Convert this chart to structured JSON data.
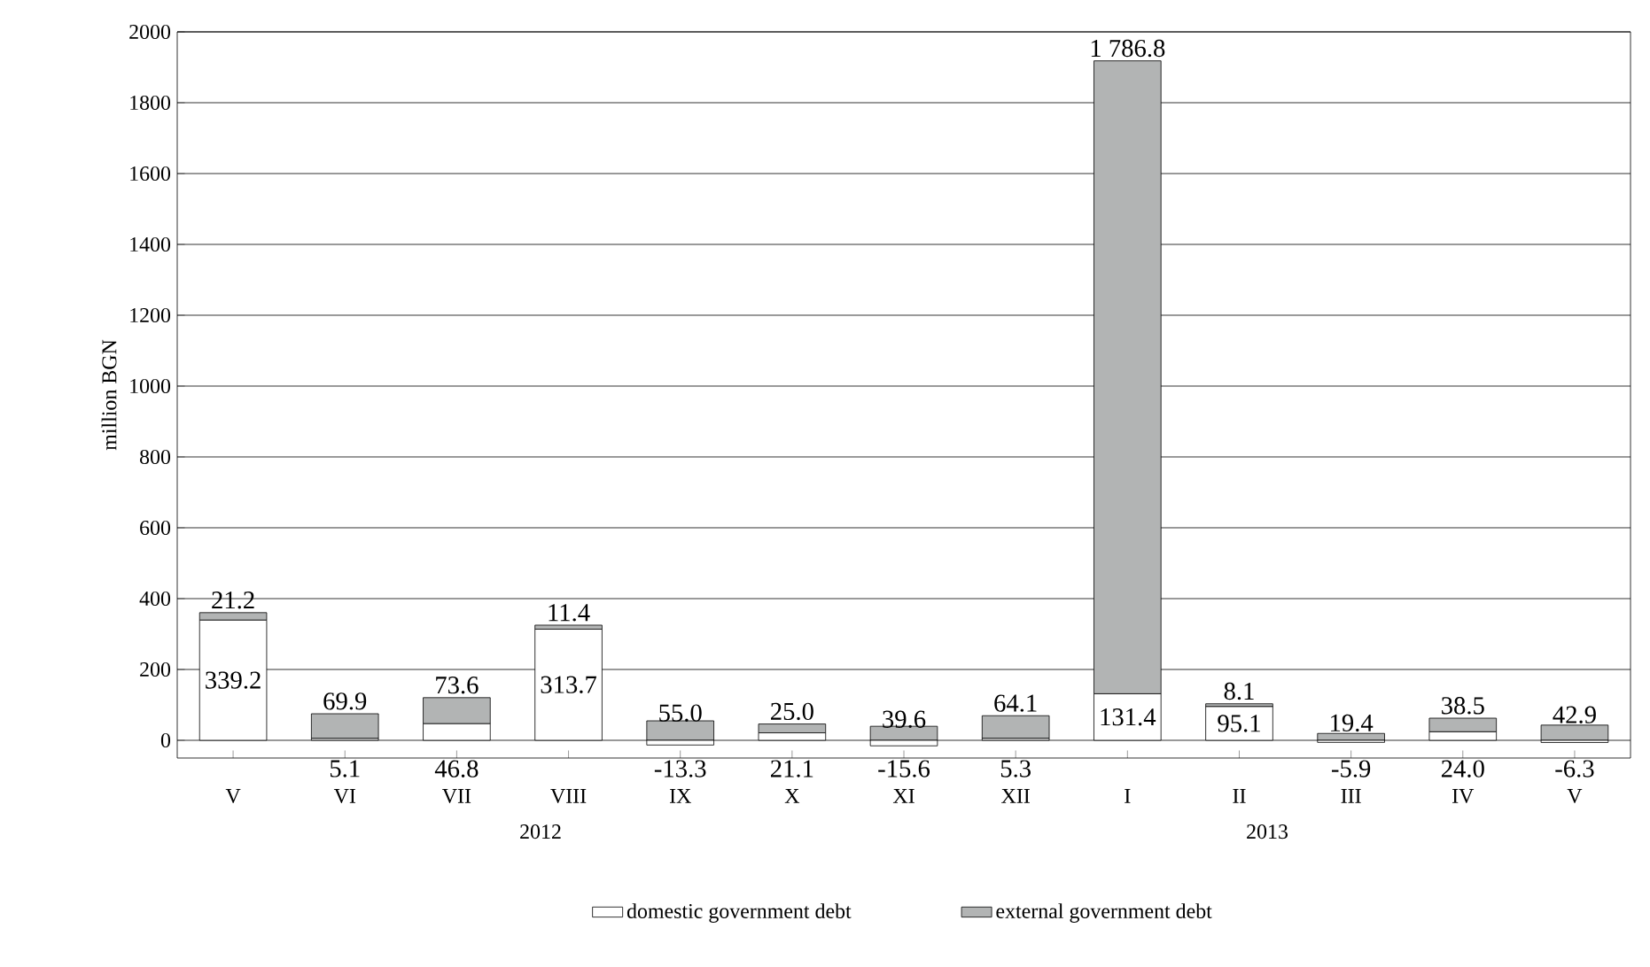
{
  "chart_data": {
    "type": "bar",
    "stacked": true,
    "ylabel": "million BGN",
    "categories": [
      "V",
      "VI",
      "VII",
      "VIII",
      "IX",
      "X",
      "XI",
      "XII",
      "I",
      "II",
      "III",
      "IV",
      "V"
    ],
    "series": [
      {
        "name": "domestic government debt",
        "color": "#ffffff",
        "values": [
          339.2,
          5.1,
          46.8,
          313.7,
          -13.3,
          21.1,
          -15.6,
          5.3,
          131.4,
          95.1,
          -5.9,
          24.0,
          -6.3
        ],
        "value_labels": [
          "339.2",
          "5.1",
          "46.8",
          "313.7",
          "-13.3",
          "21.1",
          "-15.6",
          "5.3",
          "131.4",
          "95.1",
          "-5.9",
          "24.0",
          "-6.3"
        ]
      },
      {
        "name": "external government debt",
        "color": "#b2b4b4",
        "values": [
          21.2,
          69.9,
          73.6,
          11.4,
          55.0,
          25.0,
          39.6,
          64.1,
          1786.8,
          8.1,
          19.4,
          38.5,
          42.9
        ],
        "value_labels": [
          "21.2",
          "69.9",
          "73.6",
          "11.4",
          "55.0",
          "25.0",
          "39.6",
          "64.1",
          "1 786.8",
          "8.1",
          "19.4",
          "38.5",
          "42.9"
        ]
      }
    ],
    "annotations": [
      "2012",
      "2013"
    ],
    "ylim": [
      -50,
      2000
    ],
    "yticks": [
      0,
      200,
      400,
      600,
      800,
      1000,
      1200,
      1400,
      1600,
      1800,
      2000
    ],
    "grid": "y",
    "legend": "bottom"
  }
}
